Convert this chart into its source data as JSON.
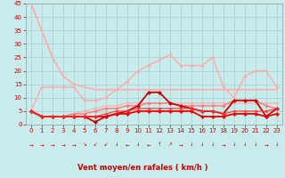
{
  "bg_color": "#c8ecec",
  "grid_color": "#aacccc",
  "xlim": [
    -0.5,
    23.5
  ],
  "ylim": [
    0,
    45
  ],
  "yticks": [
    0,
    5,
    10,
    15,
    20,
    25,
    30,
    35,
    40,
    45
  ],
  "xticks": [
    0,
    1,
    2,
    3,
    4,
    5,
    6,
    7,
    8,
    9,
    10,
    11,
    12,
    13,
    14,
    15,
    16,
    17,
    18,
    19,
    20,
    21,
    22,
    23
  ],
  "xlabel": "Vent moyen/en rafales ( km/h )",
  "series": [
    {
      "comment": "light pink - steep drop from 45",
      "x": [
        0,
        1,
        2,
        3,
        4,
        5,
        6,
        7,
        8,
        9,
        10,
        11,
        12,
        13,
        14,
        15,
        16,
        17,
        18,
        19,
        20,
        21,
        22,
        23
      ],
      "y": [
        45,
        35,
        25,
        18,
        15,
        14,
        13,
        13,
        13,
        13,
        13,
        13,
        13,
        13,
        13,
        13,
        13,
        13,
        13,
        13,
        13,
        13,
        13,
        13
      ],
      "color": "#ffaaaa",
      "lw": 1.2,
      "marker": null,
      "ms": 0,
      "alpha": 1.0
    },
    {
      "comment": "light pink with diamonds - rises from 14 to ~25",
      "x": [
        0,
        1,
        2,
        3,
        4,
        5,
        6,
        7,
        8,
        9,
        10,
        11,
        12,
        13,
        14,
        15,
        16,
        17,
        18,
        19,
        20,
        21,
        22,
        23
      ],
      "y": [
        5,
        14,
        14,
        14,
        14,
        9,
        9,
        10,
        13,
        16,
        20,
        22,
        24,
        26,
        22,
        22,
        22,
        25,
        14,
        10,
        18,
        20,
        20,
        14
      ],
      "color": "#ffaaaa",
      "lw": 1.0,
      "marker": "D",
      "ms": 2.0,
      "alpha": 1.0
    },
    {
      "comment": "light pink with diamonds - gently rising ~7-8",
      "x": [
        0,
        1,
        2,
        3,
        4,
        5,
        6,
        7,
        8,
        9,
        10,
        11,
        12,
        13,
        14,
        15,
        16,
        17,
        18,
        19,
        20,
        21,
        22,
        23
      ],
      "y": [
        5,
        3,
        3,
        3,
        4,
        5,
        6,
        7,
        7,
        8,
        8,
        8,
        8,
        8,
        8,
        8,
        8,
        8,
        8,
        8,
        8,
        8,
        8,
        8
      ],
      "color": "#ffaaaa",
      "lw": 1.0,
      "marker": "D",
      "ms": 2.0,
      "alpha": 0.8
    },
    {
      "comment": "medium pink with diamonds",
      "x": [
        0,
        1,
        2,
        3,
        4,
        5,
        6,
        7,
        8,
        9,
        10,
        11,
        12,
        13,
        14,
        15,
        16,
        17,
        18,
        19,
        20,
        21,
        22,
        23
      ],
      "y": [
        5,
        3,
        3,
        3,
        4,
        4,
        5,
        6,
        6,
        7,
        7,
        8,
        8,
        8,
        7,
        7,
        7,
        7,
        7,
        9,
        9,
        9,
        7,
        6
      ],
      "color": "#ff7777",
      "lw": 1.0,
      "marker": "D",
      "ms": 2.0,
      "alpha": 1.0
    },
    {
      "comment": "dark red - dips at 6 then spike at 12-13",
      "x": [
        0,
        1,
        2,
        3,
        4,
        5,
        6,
        7,
        8,
        9,
        10,
        11,
        12,
        13,
        14,
        15,
        16,
        17,
        18,
        19,
        20,
        21,
        22,
        23
      ],
      "y": [
        5,
        3,
        3,
        3,
        3,
        3,
        1,
        3,
        4,
        5,
        7,
        12,
        12,
        8,
        7,
        6,
        5,
        5,
        4,
        9,
        9,
        9,
        3,
        6
      ],
      "color": "#cc0000",
      "lw": 1.3,
      "marker": "D",
      "ms": 2.5,
      "alpha": 1.0
    },
    {
      "comment": "red - flat around 3-5",
      "x": [
        0,
        1,
        2,
        3,
        4,
        5,
        6,
        7,
        8,
        9,
        10,
        11,
        12,
        13,
        14,
        15,
        16,
        17,
        18,
        19,
        20,
        21,
        22,
        23
      ],
      "y": [
        5,
        3,
        3,
        3,
        3,
        3,
        3,
        3,
        4,
        4,
        5,
        5,
        5,
        5,
        5,
        5,
        3,
        3,
        3,
        4,
        4,
        4,
        3,
        4
      ],
      "color": "#ee0000",
      "lw": 1.3,
      "marker": "D",
      "ms": 2.5,
      "alpha": 1.0
    },
    {
      "comment": "red slightly higher ~5-6",
      "x": [
        0,
        1,
        2,
        3,
        4,
        5,
        6,
        7,
        8,
        9,
        10,
        11,
        12,
        13,
        14,
        15,
        16,
        17,
        18,
        19,
        20,
        21,
        22,
        23
      ],
      "y": [
        5,
        3,
        3,
        3,
        3,
        3,
        3,
        4,
        5,
        5,
        6,
        6,
        6,
        6,
        6,
        6,
        5,
        5,
        4,
        5,
        5,
        5,
        5,
        6
      ],
      "color": "#ff3333",
      "lw": 1.0,
      "marker": "D",
      "ms": 2.0,
      "alpha": 0.85
    }
  ],
  "wind_arrows": [
    "→",
    "→",
    "→",
    "→",
    "→",
    "↘",
    "↙",
    "↙",
    "↓",
    "←",
    "↓",
    "←",
    "↑",
    "↗",
    "→",
    "↓",
    "↓",
    "↓",
    "→",
    "↓",
    "↓",
    "↓",
    "→",
    "↓"
  ]
}
